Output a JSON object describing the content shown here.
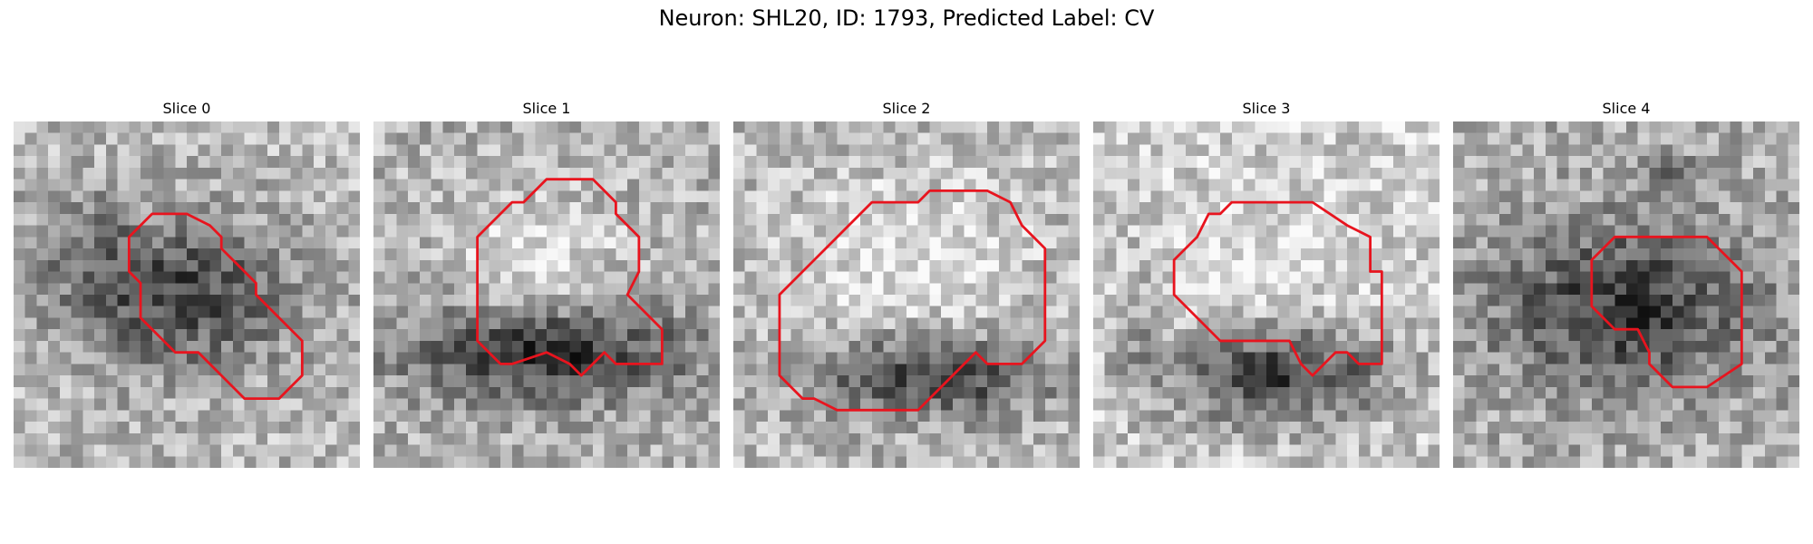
{
  "figure": {
    "title": "Neuron: SHL20, ID: 1793, Predicted Label: CV"
  },
  "panels": [
    {
      "title": "Slice 0"
    },
    {
      "title": "Slice 1"
    },
    {
      "title": "Slice 2"
    },
    {
      "title": "Slice 3"
    },
    {
      "title": "Slice 4"
    }
  ],
  "colors": {
    "contour": "#e8141e",
    "colormap": "grayscale"
  }
}
